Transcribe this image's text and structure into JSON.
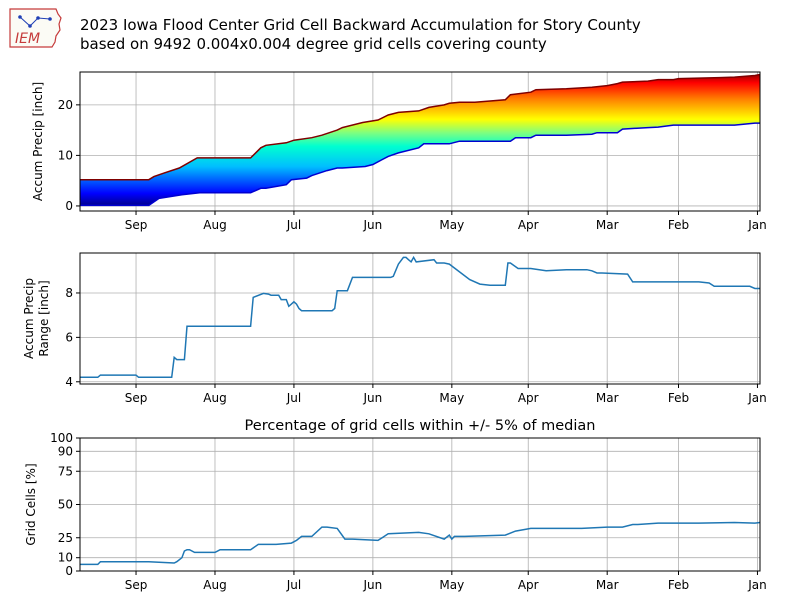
{
  "header": {
    "logo_text": "IEM",
    "title_line1": "2023 Iowa Flood Center Grid Cell Backward Accumulation for Story County",
    "title_line2": "based on 9492 0.004x0.004 degree grid cells covering county"
  },
  "chart_data": [
    {
      "type": "area",
      "title": "",
      "ylabel": "Accum Precip [inch]",
      "x_direction": "reversed",
      "xticks": [
        "Sep",
        "Aug",
        "Jul",
        "Jun",
        "May",
        "Apr",
        "Mar",
        "Feb",
        "Jan"
      ],
      "xtick_days": [
        245,
        214,
        183,
        152,
        121,
        91,
        60,
        32,
        1
      ],
      "xlim": [
        267,
        0
      ],
      "yticks": [
        0,
        10,
        20
      ],
      "ylim": [
        -1,
        26.5
      ],
      "grid": true,
      "colormap": "jet",
      "series": [
        {
          "name": "min",
          "x": [
            267,
            240,
            238,
            236,
            227,
            220,
            214,
            208,
            200,
            196,
            194,
            186,
            184,
            178,
            176,
            170,
            166,
            164,
            155,
            152,
            146,
            142,
            134,
            132,
            124,
            122,
            118,
            112,
            98,
            96,
            90,
            88,
            76,
            66,
            64,
            56,
            54,
            44,
            40,
            34,
            32,
            24,
            16,
            10,
            2,
            0
          ],
          "y": [
            0.1,
            0.1,
            0.8,
            1.5,
            2.2,
            2.6,
            2.6,
            2.6,
            2.6,
            3.5,
            3.5,
            4.2,
            5.2,
            5.5,
            6.0,
            7.0,
            7.5,
            7.5,
            7.8,
            8.2,
            9.8,
            10.5,
            11.5,
            12.3,
            12.3,
            12.3,
            12.8,
            12.8,
            12.8,
            13.5,
            13.5,
            14.0,
            14.0,
            14.2,
            14.5,
            14.5,
            15.2,
            15.5,
            15.6,
            16.0,
            16.0,
            16.0,
            16.0,
            16.0,
            16.4,
            16.4
          ]
        },
        {
          "name": "max",
          "x": [
            267,
            240,
            238,
            234,
            228,
            221,
            214,
            208,
            200,
            196,
            194,
            186,
            183,
            176,
            172,
            166,
            164,
            156,
            150,
            146,
            142,
            134,
            130,
            124,
            122,
            118,
            112,
            100,
            98,
            90,
            88,
            76,
            66,
            60,
            56,
            54,
            44,
            40,
            34,
            32,
            24,
            16,
            10,
            2,
            0
          ],
          "y": [
            5.2,
            5.2,
            5.8,
            6.5,
            7.5,
            9.5,
            9.5,
            9.5,
            9.5,
            11.5,
            12.0,
            12.5,
            13.0,
            13.5,
            14.0,
            15.0,
            15.5,
            16.5,
            17.0,
            18.0,
            18.5,
            18.8,
            19.5,
            20.0,
            20.3,
            20.5,
            20.5,
            21.0,
            22.0,
            22.5,
            23.0,
            23.2,
            23.5,
            23.8,
            24.2,
            24.5,
            24.7,
            25.0,
            25.0,
            25.2,
            25.3,
            25.4,
            25.5,
            25.8,
            26.0
          ]
        }
      ]
    },
    {
      "type": "line",
      "title": "",
      "ylabel": "Accum Precip Range [inch]",
      "ylabel_lines": [
        "Accum Precip",
        "Range [inch]"
      ],
      "x_direction": "reversed",
      "xticks": [
        "Sep",
        "Aug",
        "Jul",
        "Jun",
        "May",
        "Apr",
        "Mar",
        "Feb",
        "Jan"
      ],
      "xtick_days": [
        245,
        214,
        183,
        152,
        121,
        91,
        60,
        32,
        1
      ],
      "xlim": [
        267,
        0
      ],
      "yticks": [
        4,
        6,
        8
      ],
      "ylim": [
        3.9,
        9.8
      ],
      "grid": true,
      "series": [
        {
          "name": "range",
          "x": [
            267,
            260,
            259,
            245,
            244,
            232,
            231,
            230,
            229,
            227,
            226,
            225,
            224,
            223,
            222,
            214,
            212,
            200,
            199,
            195,
            193,
            192,
            189,
            188,
            186,
            185,
            184,
            183,
            182,
            181,
            180,
            172,
            168,
            167,
            166,
            162,
            160,
            150,
            145,
            144,
            142,
            140,
            139,
            138,
            137,
            136,
            135,
            128,
            127,
            124,
            122,
            114,
            110,
            106,
            100,
            99,
            98,
            95,
            90,
            84,
            76,
            68,
            66,
            64,
            62,
            52,
            50,
            48,
            40,
            24,
            20,
            18,
            12,
            4,
            2,
            0
          ],
          "y": [
            4.2,
            4.2,
            4.3,
            4.3,
            4.2,
            4.2,
            4.2,
            5.1,
            5.0,
            5.0,
            5.0,
            6.5,
            6.5,
            6.5,
            6.5,
            6.5,
            6.5,
            6.5,
            7.8,
            7.98,
            7.95,
            7.9,
            7.9,
            7.7,
            7.7,
            7.4,
            7.5,
            7.6,
            7.5,
            7.3,
            7.2,
            7.2,
            7.2,
            7.3,
            8.1,
            8.1,
            8.7,
            8.7,
            8.7,
            8.75,
            9.3,
            9.6,
            9.6,
            9.5,
            9.4,
            9.6,
            9.4,
            9.5,
            9.35,
            9.35,
            9.3,
            8.6,
            8.4,
            8.35,
            8.35,
            9.35,
            9.35,
            9.1,
            9.1,
            9.0,
            9.05,
            9.05,
            9.0,
            8.9,
            8.9,
            8.85,
            8.5,
            8.5,
            8.5,
            8.5,
            8.45,
            8.3,
            8.3,
            8.3,
            8.2,
            8.2
          ]
        }
      ]
    },
    {
      "type": "line",
      "title": "Percentage of grid cells within +/- 5% of median",
      "ylabel": "Grid Cells [%]",
      "x_direction": "reversed",
      "xticks": [
        "Sep",
        "Aug",
        "Jul",
        "Jun",
        "May",
        "Apr",
        "Mar",
        "Feb",
        "Jan"
      ],
      "xtick_days": [
        245,
        214,
        183,
        152,
        121,
        91,
        60,
        32,
        1
      ],
      "xlim": [
        267,
        0
      ],
      "yticks": [
        0,
        10,
        25,
        50,
        75,
        90,
        100
      ],
      "ylim": [
        0,
        100
      ],
      "grid": true,
      "series": [
        {
          "name": "percent",
          "x": [
            267,
            260,
            259,
            240,
            230,
            229,
            227,
            226,
            225,
            224,
            222,
            220,
            214,
            212,
            200,
            197,
            190,
            184,
            182,
            180,
            176,
            172,
            170,
            166,
            163,
            160,
            150,
            146,
            134,
            130,
            124,
            122,
            121,
            120,
            116,
            100,
            96,
            90,
            70,
            60,
            54,
            50,
            48,
            40,
            24,
            10,
            2,
            0
          ],
          "y": [
            5,
            5,
            7,
            7,
            6,
            7,
            10,
            15,
            16,
            16,
            14,
            14,
            14,
            16,
            16,
            20,
            20,
            21,
            23,
            26,
            26,
            33,
            33,
            32,
            24,
            24,
            23,
            28,
            29,
            28,
            24,
            27,
            24,
            26,
            26,
            27,
            30,
            32,
            32,
            33,
            33,
            35,
            35,
            36,
            36,
            36.5,
            36,
            36.5
          ]
        }
      ]
    }
  ]
}
